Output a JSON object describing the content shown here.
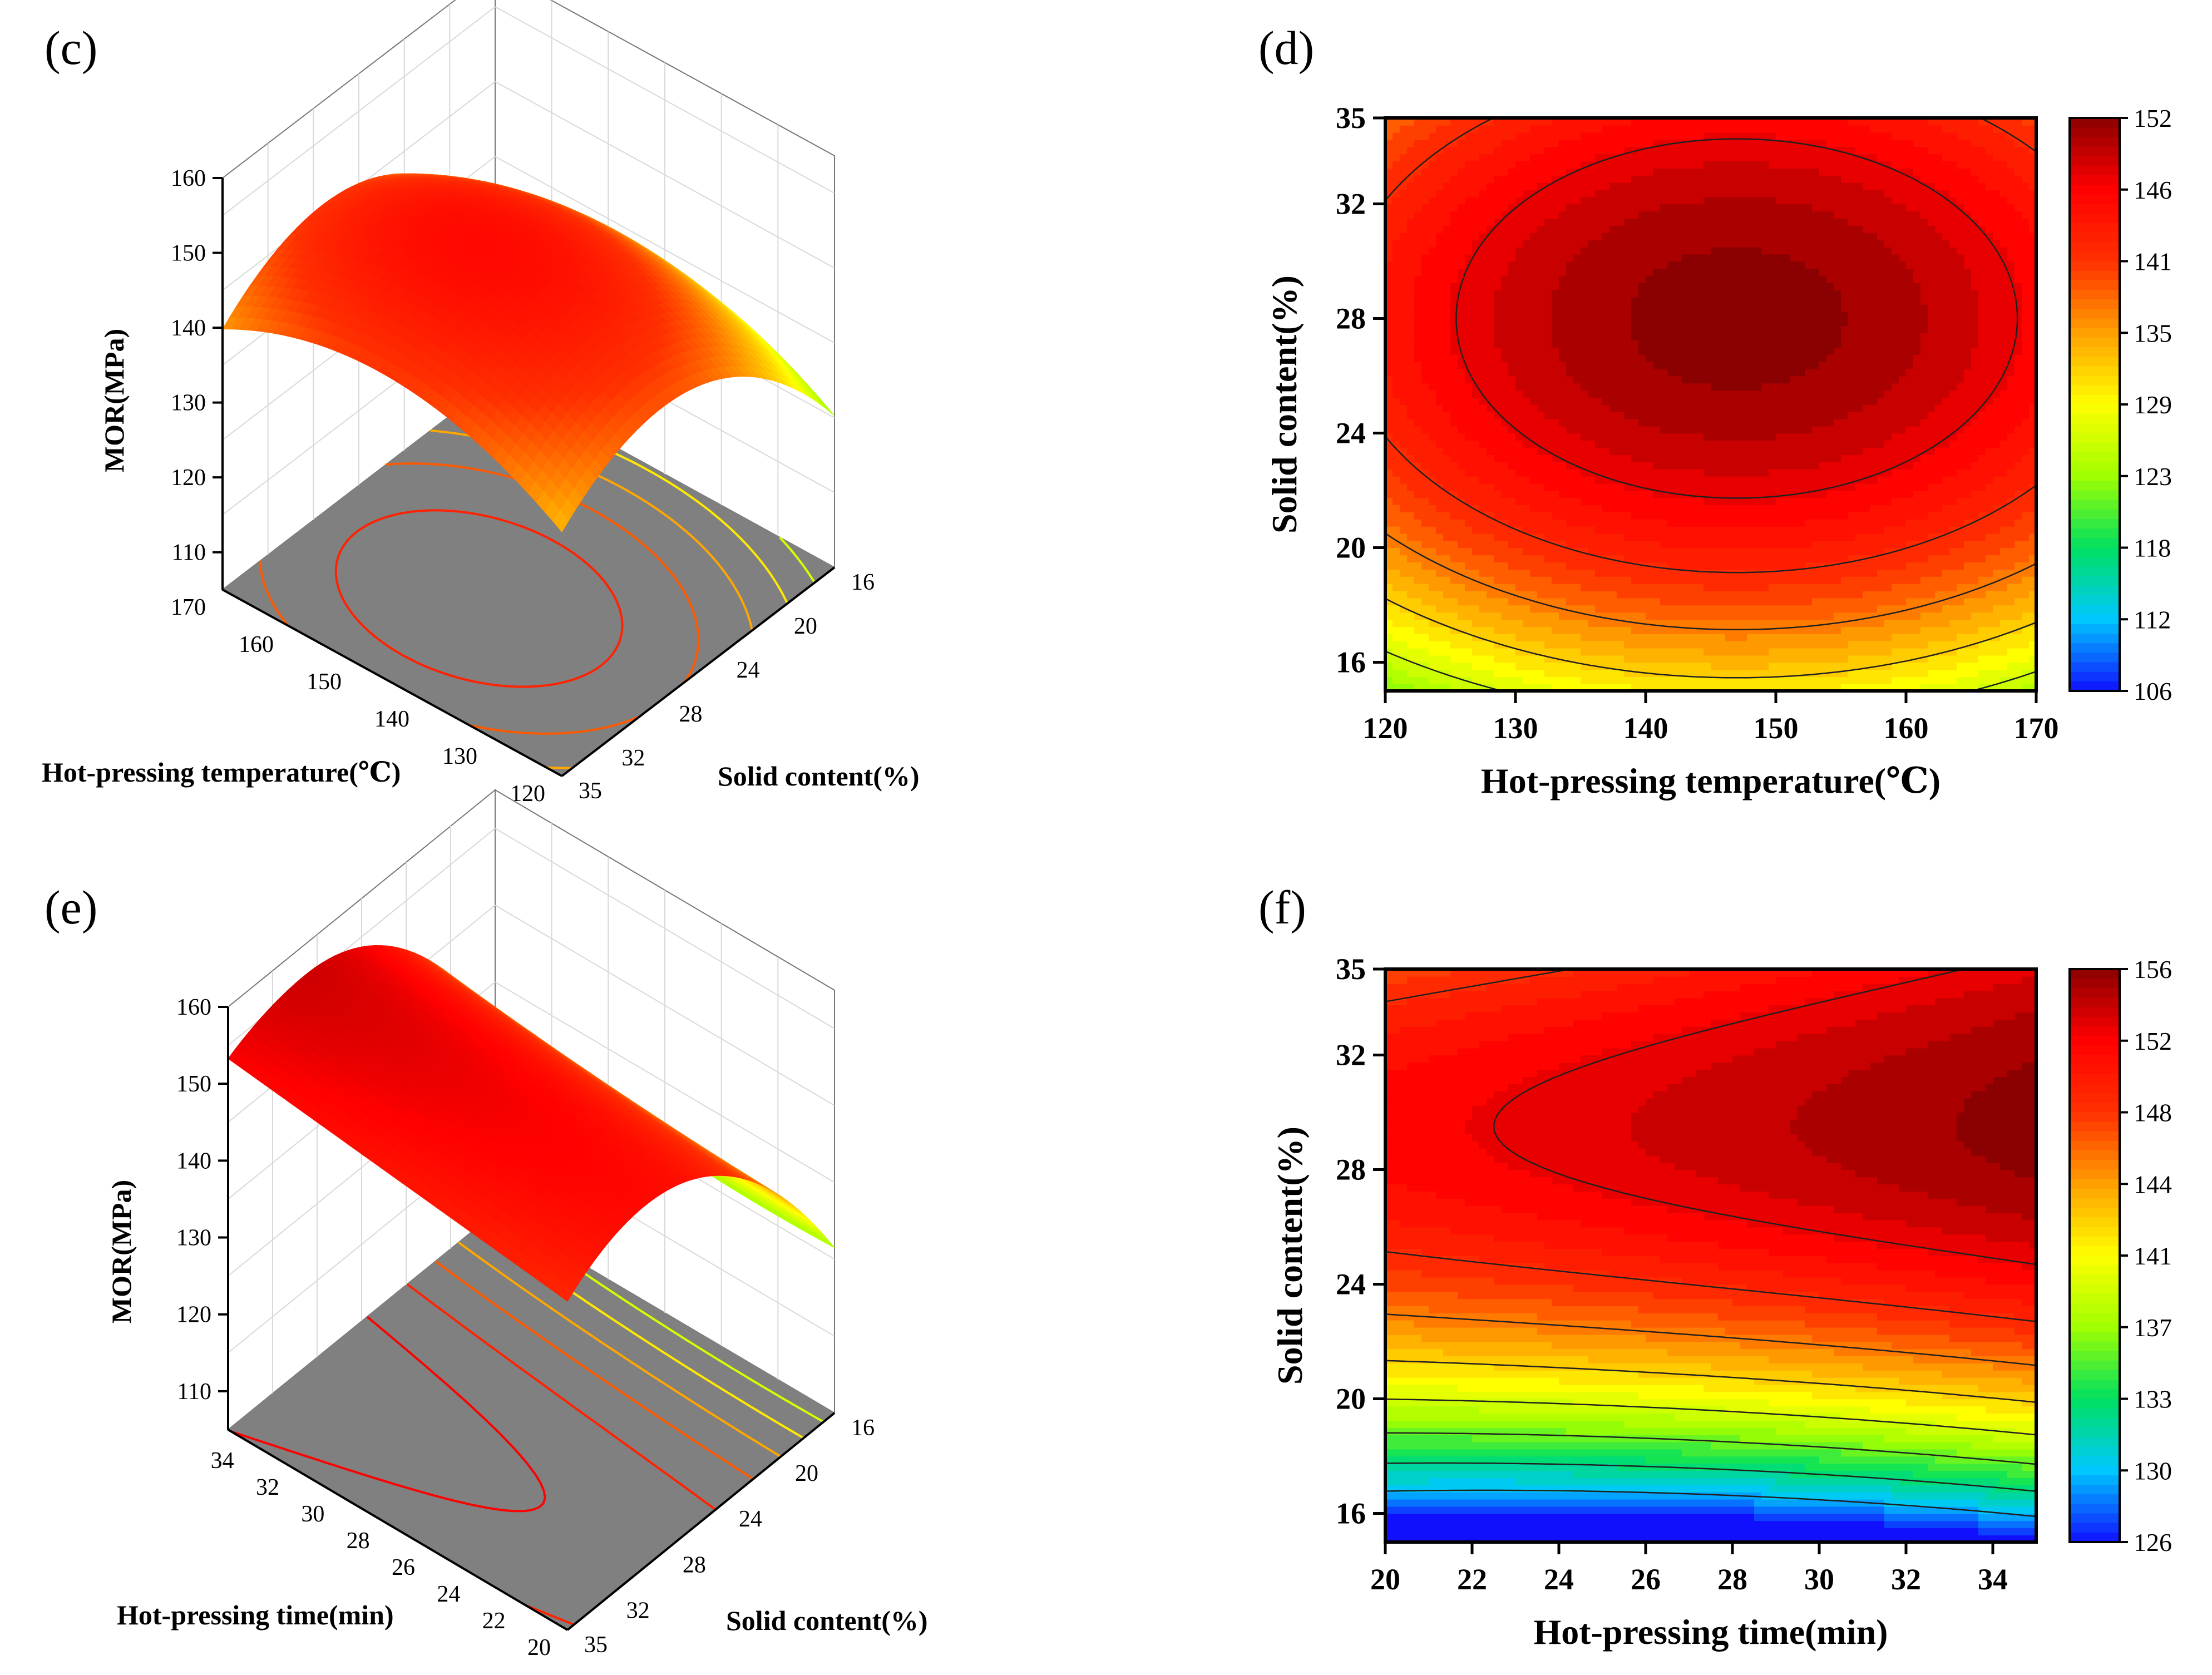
{
  "figure": {
    "panels": [
      "(c)",
      "(d)",
      "(e)",
      "(f)"
    ]
  },
  "colors": {
    "surface_base": "#808080",
    "grid": "#d9d9d9",
    "contour_line": "#202020",
    "colormap": [
      "#1010ff",
      "#00c8ff",
      "#00e060",
      "#a0ff00",
      "#ffff00",
      "#ffa000",
      "#ff3000",
      "#ff0000",
      "#8b0000"
    ]
  },
  "chart_data": [
    {
      "panel": "(c)",
      "type": "surface3d",
      "zlabel": "MOR(MPa)",
      "xlabel": "Hot-pressing temperature(℃)",
      "ylabel": "Solid content(%)",
      "x_ticks": [
        "170",
        "160",
        "150",
        "140",
        "130",
        "120"
      ],
      "y_ticks": [
        "16",
        "20",
        "24",
        "28",
        "32",
        "35"
      ],
      "z_ticks": [
        "160",
        "150",
        "140",
        "130",
        "120",
        "110"
      ],
      "xlim": [
        120,
        170
      ],
      "ylim": [
        16,
        35
      ],
      "zlim": [
        105,
        160
      ],
      "peak": {
        "x": 147,
        "y": 28,
        "z": 152
      }
    },
    {
      "panel": "(d)",
      "type": "contour",
      "xlabel": "Hot-pressing temperature(℃)",
      "ylabel": "Solid content(%)",
      "x_ticks": [
        "120",
        "130",
        "140",
        "150",
        "160",
        "170"
      ],
      "y_ticks": [
        "35",
        "32",
        "28",
        "24",
        "20",
        "16"
      ],
      "xlim": [
        120,
        170
      ],
      "ylim": [
        15,
        35
      ],
      "colorbar_ticks": [
        "152",
        "146",
        "141",
        "135",
        "129",
        "123",
        "118",
        "112",
        "106"
      ],
      "zlim": [
        106,
        152
      ],
      "peak": {
        "x": 147,
        "y": 28,
        "z": 152
      }
    },
    {
      "panel": "(e)",
      "type": "surface3d",
      "zlabel": "MOR(MPa)",
      "xlabel": "Hot-pressing time(min)",
      "ylabel": "Solid content(%)",
      "x_ticks": [
        "34",
        "32",
        "30",
        "28",
        "26",
        "24",
        "22",
        "20"
      ],
      "y_ticks": [
        "16",
        "20",
        "24",
        "28",
        "32",
        "35"
      ],
      "z_ticks": [
        "160",
        "150",
        "140",
        "130",
        "120",
        "110"
      ],
      "xlim": [
        20,
        35
      ],
      "ylim": [
        16,
        35
      ],
      "zlim": [
        105,
        160
      ],
      "peak": {
        "x": 35,
        "y": 29.5,
        "z": 156
      }
    },
    {
      "panel": "(f)",
      "type": "contour",
      "xlabel": "Hot-pressing time(min)",
      "ylabel": "Solid content(%)",
      "x_ticks": [
        "20",
        "22",
        "24",
        "26",
        "28",
        "30",
        "32",
        "34"
      ],
      "y_ticks": [
        "35",
        "32",
        "28",
        "24",
        "20",
        "16"
      ],
      "xlim": [
        20,
        35
      ],
      "ylim": [
        15,
        35
      ],
      "colorbar_ticks": [
        "156",
        "152",
        "148",
        "144",
        "141",
        "137",
        "133",
        "130",
        "126"
      ],
      "zlim": [
        126,
        156
      ],
      "peak": {
        "x": 35,
        "y": 29.5,
        "z": 156
      }
    }
  ]
}
